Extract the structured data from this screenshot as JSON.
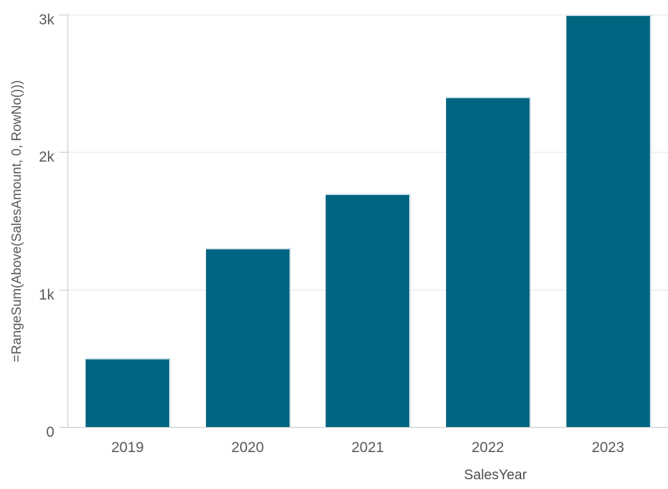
{
  "chart_data": {
    "type": "bar",
    "title": "",
    "categories": [
      "2019",
      "2020",
      "2021",
      "2022",
      "2023"
    ],
    "values": [
      500,
      1300,
      1700,
      2400,
      3000
    ],
    "xlabel": "SalesYear",
    "ylabel": "=RangeSum(Above(SalesAmount, 0, RowNo()))",
    "ylim": [
      0,
      3000
    ],
    "yticks": [
      {
        "value": 0,
        "label": "0"
      },
      {
        "value": 1000,
        "label": "1k"
      },
      {
        "value": 2000,
        "label": "2k"
      },
      {
        "value": 3000,
        "label": "3k"
      }
    ],
    "grid": true,
    "legend": "none",
    "colors": {
      "bar_fill": "#006580",
      "bar_edge": "#cbe0e8",
      "axis_line": "#c6c6c6",
      "gridline": "#e6e6e6",
      "label_text": "#595959"
    }
  }
}
